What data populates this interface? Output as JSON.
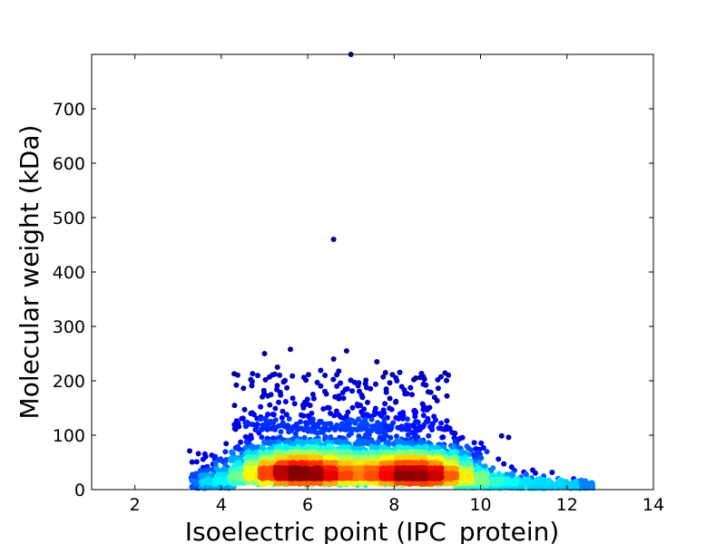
{
  "chart_data": {
    "type": "scatter",
    "title": "",
    "xlabel": "Isoelectric point (IPC_protein)",
    "ylabel": "Molecular weight (kDa)",
    "xlim": [
      1,
      14
    ],
    "ylim": [
      0,
      800
    ],
    "xticks": [
      2,
      4,
      6,
      8,
      10,
      12,
      14
    ],
    "yticks": [
      0,
      100,
      200,
      300,
      400,
      500,
      600,
      700
    ],
    "grid": false,
    "legend": "none",
    "colormap": "jet (point density)",
    "colors": {
      "low_density": "#00008f",
      "mid_density": "#7fff7f",
      "high_density": "#8f0000"
    },
    "density_peaks": [
      {
        "x": 5.7,
        "y": 25
      },
      {
        "x": 8.6,
        "y": 22
      }
    ],
    "outliers": [
      {
        "x": 6.6,
        "y": 460
      },
      {
        "x": 7.0,
        "y": 800
      },
      {
        "x": 5.6,
        "y": 258
      },
      {
        "x": 6.9,
        "y": 255
      },
      {
        "x": 5.0,
        "y": 250
      },
      {
        "x": 6.6,
        "y": 240
      },
      {
        "x": 7.6,
        "y": 235
      },
      {
        "x": 5.3,
        "y": 225
      },
      {
        "x": 4.3,
        "y": 213
      },
      {
        "x": 8.5,
        "y": 205
      },
      {
        "x": 6.4,
        "y": 210
      },
      {
        "x": 7.8,
        "y": 215
      }
    ]
  }
}
